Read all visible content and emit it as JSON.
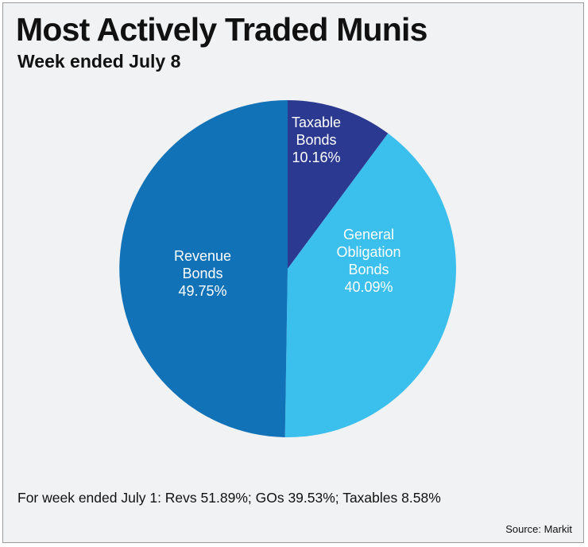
{
  "header": {
    "title": "Most Actively Traded Munis",
    "subtitle": "Week ended July 8"
  },
  "chart_data": {
    "type": "pie",
    "title": "Most Actively Traded Munis",
    "subtitle": "Week ended July 8",
    "start_angle": "12 o'clock",
    "direction": "clockwise",
    "slices": [
      {
        "label_lines": [
          "Taxable",
          "Bonds"
        ],
        "value": 10.16,
        "value_label": "10.16%",
        "color": "#2b3990"
      },
      {
        "label_lines": [
          "General",
          "Obligation",
          "Bonds"
        ],
        "value": 40.09,
        "value_label": "40.09%",
        "color": "#3bbfec"
      },
      {
        "label_lines": [
          "Revenue",
          "Bonds"
        ],
        "value": 49.75,
        "value_label": "49.75%",
        "color": "#1172b8"
      }
    ]
  },
  "footer": {
    "note": "For week ended July 1: Revs 51.89%; GOs 39.53%; Taxables 8.58%",
    "source": "Source: Markit"
  }
}
